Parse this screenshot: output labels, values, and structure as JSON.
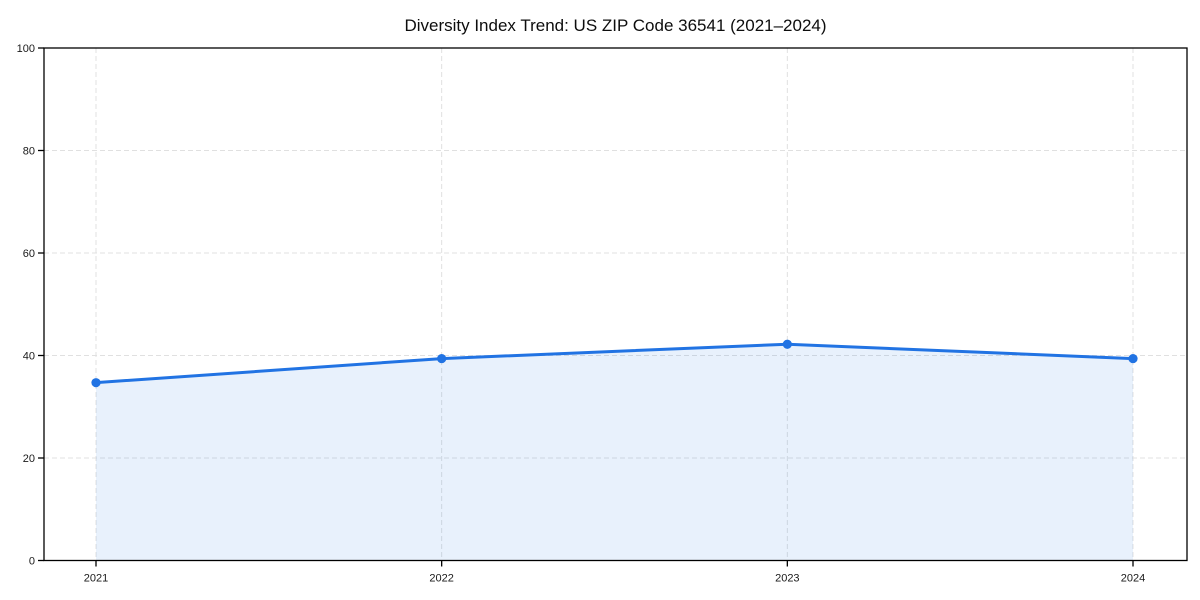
{
  "chart_data": {
    "type": "line",
    "title": "Diversity Index Trend: US ZIP Code 36541 (2021–2024)",
    "categories": [
      "2021",
      "2022",
      "2023",
      "2024"
    ],
    "series": [
      {
        "name": "Diversity Index",
        "values": [
          34.7,
          39.4,
          42.2,
          39.4
        ]
      }
    ],
    "xlabel": "",
    "ylabel": "",
    "ylim": [
      0,
      100
    ],
    "yticks": [
      0,
      20,
      40,
      60,
      80,
      100
    ],
    "grid": true,
    "grid_style": "dashed",
    "legend": "none",
    "marker": "circle",
    "colors": {
      "line": "#2173e3",
      "marker": "#2173e3",
      "area_fill": "rgba(33, 115, 227, 0.10)",
      "grid": "#e0e0e0",
      "spine": "#000000",
      "tick_text": "#1a1a1a",
      "title_text": "#0d0d0d",
      "background": "#ffffff"
    }
  }
}
